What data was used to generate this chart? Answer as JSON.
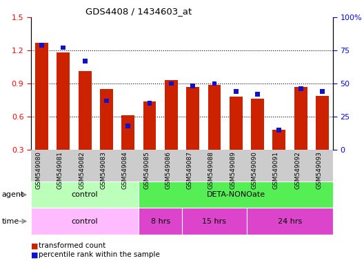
{
  "title": "GDS4408 / 1434603_at",
  "samples": [
    "GSM549080",
    "GSM549081",
    "GSM549082",
    "GSM549083",
    "GSM549084",
    "GSM549085",
    "GSM549086",
    "GSM549087",
    "GSM549088",
    "GSM549089",
    "GSM549090",
    "GSM549091",
    "GSM549092",
    "GSM549093"
  ],
  "transformed_count": [
    1.27,
    1.18,
    1.01,
    0.85,
    0.61,
    0.74,
    0.93,
    0.87,
    0.89,
    0.78,
    0.76,
    0.48,
    0.87,
    0.79
  ],
  "percentile_rank": [
    79,
    77,
    67,
    37,
    18,
    35,
    50,
    48,
    50,
    44,
    42,
    15,
    46,
    44
  ],
  "ylim_left": [
    0.3,
    1.5
  ],
  "ylim_right": [
    0,
    100
  ],
  "yticks_left": [
    0.3,
    0.6,
    0.9,
    1.2,
    1.5
  ],
  "yticks_right": [
    0,
    25,
    50,
    75,
    100
  ],
  "bar_color_red": "#cc2200",
  "bar_color_blue": "#1111cc",
  "agent_control_cols": [
    0,
    1,
    2,
    3,
    4
  ],
  "agent_deta_cols": [
    5,
    6,
    7,
    8,
    9,
    10,
    11,
    12,
    13
  ],
  "time_control_cols": [
    0,
    1,
    2,
    3,
    4
  ],
  "time_8hrs_cols": [
    5,
    6
  ],
  "time_15hrs_cols": [
    7,
    8,
    9
  ],
  "time_24hrs_cols": [
    10,
    11,
    12,
    13
  ],
  "agent_control_label": "control",
  "agent_deta_label": "DETA-NONOate",
  "time_control_label": "control",
  "time_8hrs_label": "8 hrs",
  "time_15hrs_label": "15 hrs",
  "time_24hrs_label": "24 hrs",
  "agent_control_color": "#bbffbb",
  "agent_deta_color": "#55ee55",
  "time_control_color": "#ffbbff",
  "time_8hrs_color": "#dd44cc",
  "time_15hrs_color": "#dd44cc",
  "time_24hrs_color": "#dd44cc",
  "bg_tick_color": "#cccccc",
  "legend_red_label": "transformed count",
  "legend_blue_label": "percentile rank within the sample",
  "bar_width": 0.6,
  "dotted_lines": [
    0.6,
    0.9,
    1.2
  ]
}
